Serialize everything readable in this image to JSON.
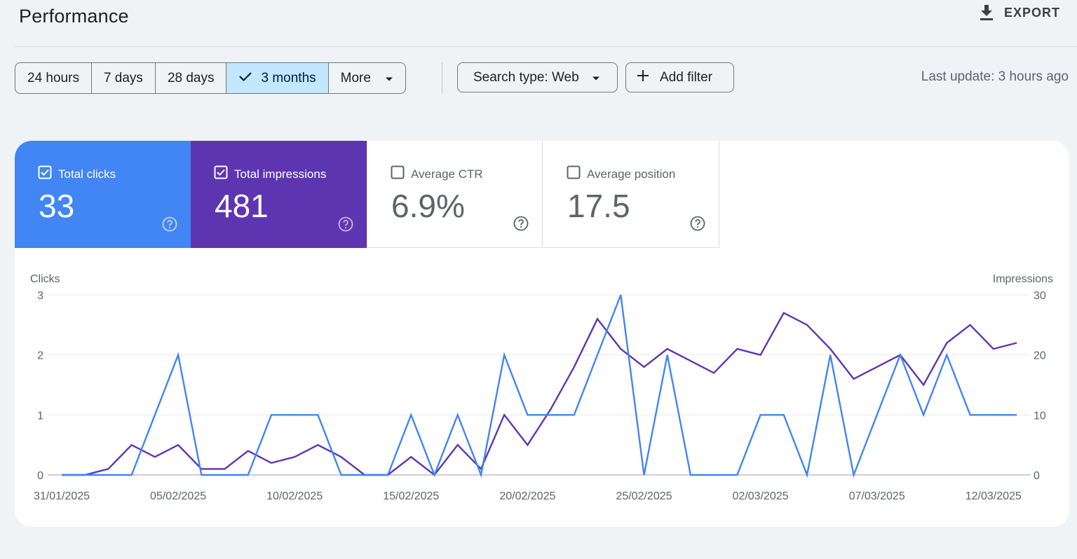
{
  "header": {
    "title": "Performance",
    "export_label": "EXPORT"
  },
  "toolbar": {
    "ranges": [
      {
        "label": "24 hours",
        "selected": false
      },
      {
        "label": "7 days",
        "selected": false
      },
      {
        "label": "28 days",
        "selected": false
      },
      {
        "label": "3 months",
        "selected": true
      },
      {
        "label": "More",
        "selected": false
      }
    ],
    "search_type_label": "Search type: Web",
    "add_filter_label": "Add filter",
    "last_update": "Last update: 3 hours ago"
  },
  "metrics": {
    "clicks": {
      "label": "Total clicks",
      "value": "33",
      "checked": true,
      "color": "#4285f4"
    },
    "impressions": {
      "label": "Total impressions",
      "value": "481",
      "checked": true,
      "color": "#5e35b1"
    },
    "ctr": {
      "label": "Average CTR",
      "value": "6.9%",
      "checked": false
    },
    "position": {
      "label": "Average position",
      "value": "17.5",
      "checked": false
    }
  },
  "chart_data": {
    "type": "line",
    "ylabel_left": "Clicks",
    "ylabel_right": "Impressions",
    "ylim_left": [
      0,
      3
    ],
    "ylim_right": [
      0,
      30
    ],
    "yticks_left": [
      "0",
      "1",
      "2",
      "3"
    ],
    "yticks_right": [
      "0",
      "10",
      "20",
      "30"
    ],
    "grid": true,
    "x_tick_labels": [
      "31/01/2025",
      "05/02/2025",
      "10/02/2025",
      "15/02/2025",
      "20/02/2025",
      "25/02/2025",
      "02/03/2025",
      "07/03/2025",
      "12/03/2025"
    ],
    "x_tick_dates": [
      "31/01/2025",
      "05/02/2025",
      "10/02/2025",
      "15/02/2025",
      "20/02/2025",
      "25/02/2025",
      "02/03/2025",
      "07/03/2025",
      "12/03/2025"
    ],
    "x": [
      "31/01/2025",
      "01/02/2025",
      "02/02/2025",
      "03/02/2025",
      "04/02/2025",
      "05/02/2025",
      "06/02/2025",
      "07/02/2025",
      "08/02/2025",
      "09/02/2025",
      "10/02/2025",
      "11/02/2025",
      "12/02/2025",
      "13/02/2025",
      "14/02/2025",
      "15/02/2025",
      "16/02/2025",
      "17/02/2025",
      "18/02/2025",
      "19/02/2025",
      "20/02/2025",
      "21/02/2025",
      "22/02/2025",
      "23/02/2025",
      "24/02/2025",
      "25/02/2025",
      "26/02/2025",
      "27/02/2025",
      "28/02/2025",
      "01/03/2025",
      "02/03/2025",
      "03/03/2025",
      "04/03/2025",
      "05/03/2025",
      "06/03/2025",
      "07/03/2025",
      "08/03/2025",
      "09/03/2025",
      "10/03/2025",
      "11/03/2025",
      "12/03/2025",
      "13/03/2025"
    ],
    "series": [
      {
        "name": "Clicks",
        "axis": "left",
        "color": "#4285f4",
        "values": [
          0,
          0,
          0,
          0,
          1,
          2,
          0,
          0,
          0,
          1,
          1,
          1,
          0,
          0,
          0,
          1,
          0,
          1,
          0,
          2,
          1,
          1,
          1,
          2,
          3,
          0,
          2,
          0,
          0,
          0,
          1,
          1,
          0,
          2,
          0,
          1,
          2,
          1,
          2,
          1,
          1,
          1
        ]
      },
      {
        "name": "Impressions",
        "axis": "right",
        "color": "#5e35b1",
        "values": [
          0,
          0,
          1,
          5,
          3,
          5,
          1,
          1,
          4,
          2,
          3,
          5,
          3,
          0,
          0,
          3,
          0,
          5,
          1,
          10,
          5,
          11,
          18,
          26,
          21,
          18,
          21,
          19,
          17,
          21,
          20,
          27,
          25,
          21,
          16,
          18,
          20,
          15,
          22,
          25,
          21,
          22
        ]
      }
    ]
  }
}
